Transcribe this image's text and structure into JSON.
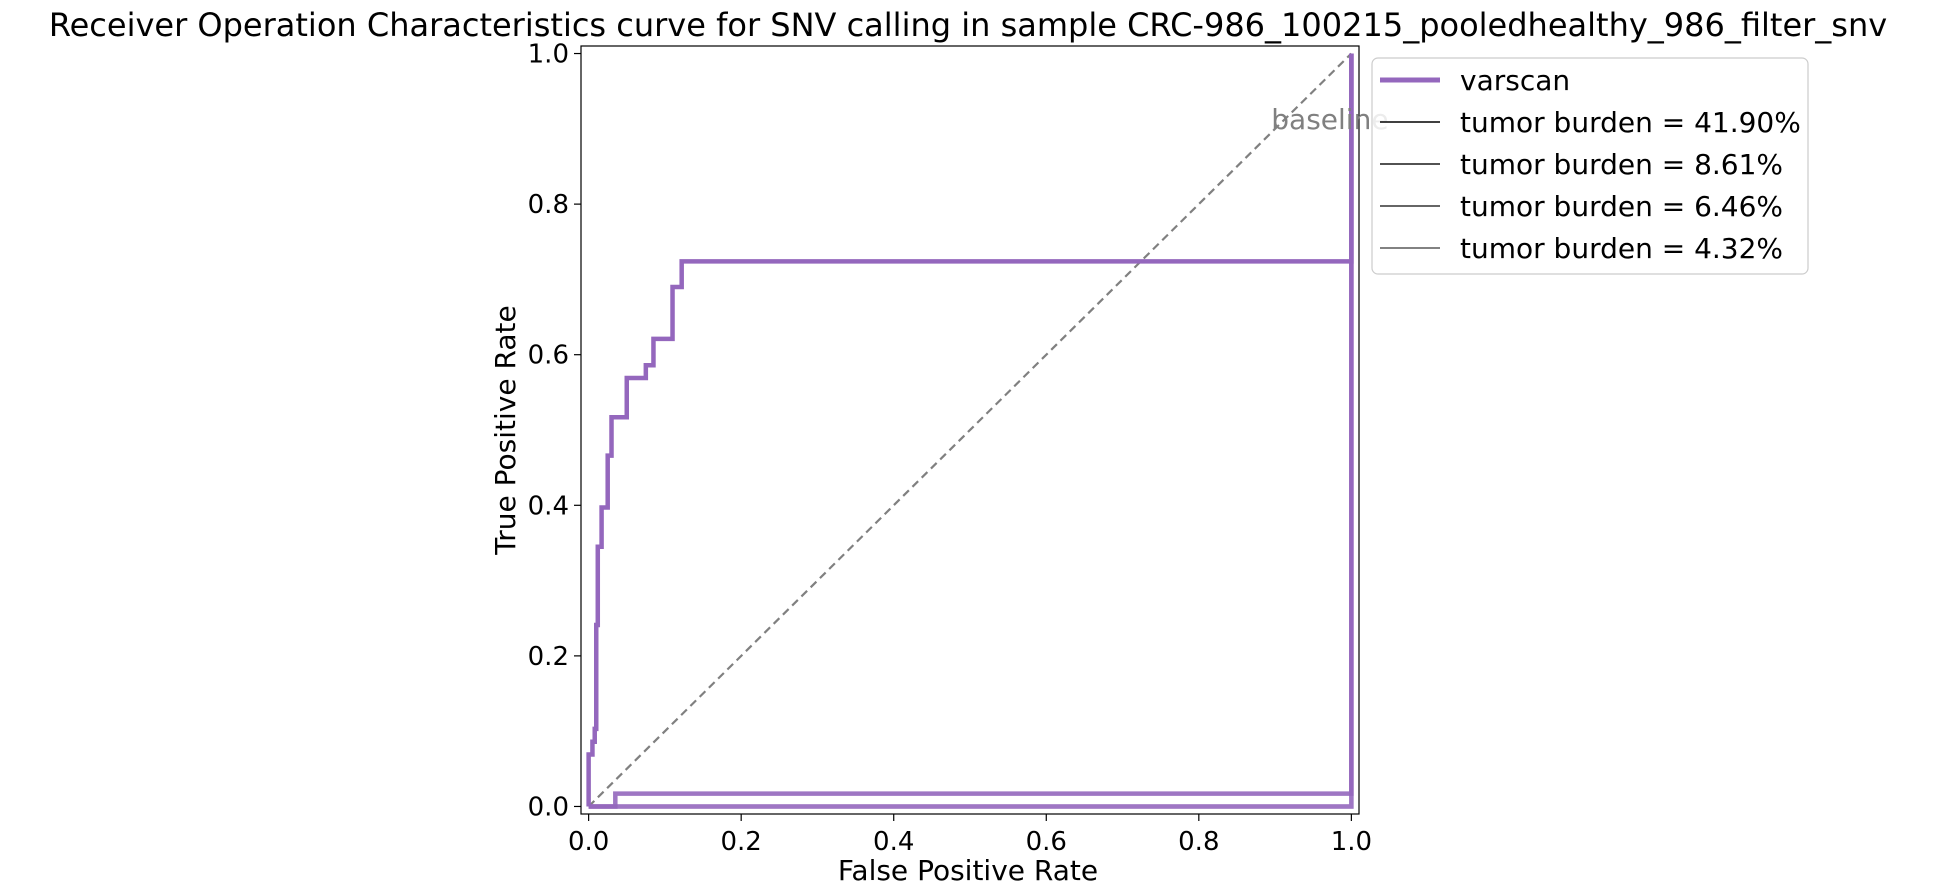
{
  "chart_data": {
    "type": "line",
    "title": "Receiver Operation Characteristics curve for SNV calling in sample CRC-986_100215_pooledhealthy_986_filter_snv",
    "xlabel": "False Positive Rate",
    "ylabel": "True Positive Rate",
    "xlim": [
      -0.01,
      1.01
    ],
    "ylim": [
      -0.01,
      1.01
    ],
    "xticks": [
      0.0,
      0.2,
      0.4,
      0.6,
      0.8,
      1.0
    ],
    "yticks": [
      0.0,
      0.2,
      0.4,
      0.6,
      0.8,
      1.0
    ],
    "xtick_labels": [
      "0.0",
      "0.2",
      "0.4",
      "0.6",
      "0.8",
      "1.0"
    ],
    "ytick_labels": [
      "0.0",
      "0.2",
      "0.4",
      "0.6",
      "0.8",
      "1.0"
    ],
    "grid": false,
    "legend_position": "outside-top-right",
    "baseline": {
      "label": "baseline",
      "x": [
        0,
        1
      ],
      "y": [
        0,
        1
      ],
      "color": "#808080",
      "style": "dashed"
    },
    "legend": [
      {
        "label": "varscan",
        "color": "#9467bd",
        "width": "thick"
      },
      {
        "label": "tumor burden = 41.90%",
        "color": "#000000",
        "alpha": 1.0
      },
      {
        "label": "tumor burden = 8.61%",
        "color": "#000000",
        "alpha": 0.9
      },
      {
        "label": "tumor burden = 6.46%",
        "color": "#000000",
        "alpha": 0.8
      },
      {
        "label": "tumor burden = 4.32%",
        "color": "#000000",
        "alpha": 0.65
      }
    ],
    "series": [
      {
        "color": "#9467bd",
        "alpha": 1.0,
        "x": [
          0.0,
          0.0,
          0.0,
          0.005,
          0.005,
          0.008,
          0.008,
          0.01,
          0.01,
          0.012,
          0.012,
          0.017,
          0.017,
          0.025,
          0.025,
          0.03,
          0.03,
          0.05,
          0.05,
          0.075,
          0.075,
          0.085,
          0.085,
          0.11,
          0.11,
          0.122,
          0.122,
          0.128,
          0.128,
          1.0,
          1.0
        ],
        "y": [
          0.0,
          0.0,
          0.069,
          0.069,
          0.086,
          0.086,
          0.103,
          0.103,
          0.241,
          0.241,
          0.345,
          0.345,
          0.397,
          0.397,
          0.466,
          0.466,
          0.517,
          0.517,
          0.569,
          0.569,
          0.586,
          0.586,
          0.621,
          0.621,
          0.69,
          0.69,
          0.724,
          0.724,
          0.724,
          0.724,
          1.0
        ]
      },
      {
        "color": "#9467bd",
        "alpha": 0.9,
        "x": [
          0.0,
          0.035,
          0.035,
          1.0,
          1.0
        ],
        "y": [
          0.0,
          0.0,
          0.017,
          0.017,
          1.0
        ]
      },
      {
        "color": "#9467bd",
        "alpha": 0.75,
        "x": [
          0.0,
          0.045,
          0.045,
          1.0,
          1.0
        ],
        "y": [
          0.0,
          0.0,
          0.0,
          0.0,
          1.0
        ]
      },
      {
        "color": "#9467bd",
        "alpha": 0.6,
        "x": [
          0.0,
          1.0,
          1.0
        ],
        "y": [
          0.0,
          0.0,
          1.0
        ]
      }
    ]
  }
}
